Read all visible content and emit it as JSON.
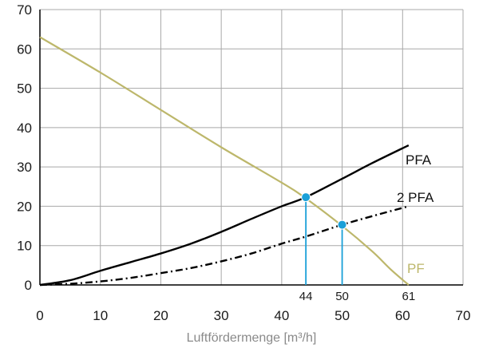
{
  "chart_data": {
    "type": "line",
    "title": "",
    "xlabel": "Luftfördermenge [m³/h]",
    "ylabel": "",
    "xlim": [
      0,
      70
    ],
    "ylim": [
      0,
      70
    ],
    "x_ticks": [
      "0",
      "10",
      "20",
      "30",
      "40",
      "50",
      "60",
      "70"
    ],
    "y_ticks": [
      "0",
      "10",
      "20",
      "30",
      "40",
      "50",
      "60",
      "70"
    ],
    "grid": true,
    "series": [
      {
        "name": "PF",
        "color": "#bdb76b",
        "style": "solid",
        "x": [
          0,
          10,
          20,
          30,
          40,
          44,
          50,
          55,
          58,
          61
        ],
        "y": [
          63,
          54,
          44.5,
          35,
          26,
          22,
          15,
          8.5,
          4,
          0
        ]
      },
      {
        "name": "PFA",
        "color": "#000000",
        "style": "solid",
        "x": [
          0,
          5,
          10,
          15,
          20,
          25,
          30,
          35,
          40,
          44,
          50,
          55,
          61
        ],
        "y": [
          0,
          1.2,
          3.6,
          5.8,
          8,
          10.5,
          13.5,
          16.8,
          20,
          22.3,
          27,
          31,
          35.5
        ]
      },
      {
        "name": "2 PFA",
        "color": "#000000",
        "style": "dashdot",
        "x": [
          0,
          5,
          10,
          15,
          20,
          25,
          30,
          35,
          40,
          44,
          50,
          55,
          61
        ],
        "y": [
          0,
          0.3,
          0.9,
          1.8,
          3,
          4.3,
          6,
          8,
          10.5,
          12.3,
          15.3,
          17.5,
          20
        ]
      }
    ],
    "markers": [
      {
        "x": 44,
        "y": 22.3,
        "label": "44",
        "color": "#1aa0d8"
      },
      {
        "x": 50,
        "y": 15.3,
        "label": "50",
        "color": "#1aa0d8"
      }
    ],
    "annotations": [
      {
        "x": 61,
        "label": "61"
      }
    ]
  }
}
